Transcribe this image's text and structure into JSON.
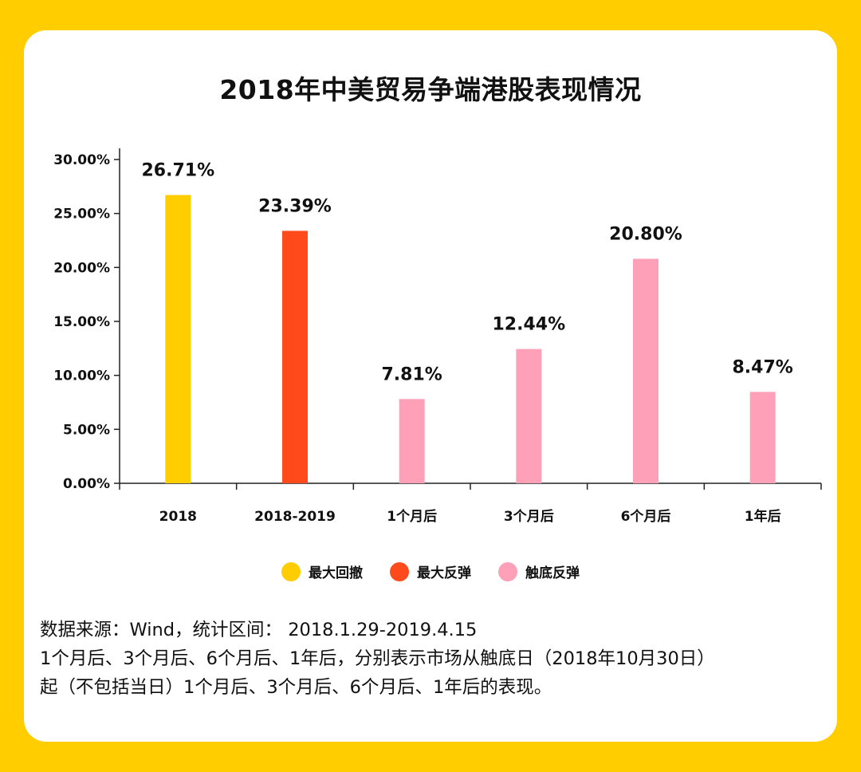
{
  "chart_data": {
    "type": "bar",
    "title": "2018年中美贸易争端港股表现情况",
    "categories": [
      "2018",
      "2018-2019",
      "1个月后",
      "3个月后",
      "6个月后",
      "1年后"
    ],
    "values": [
      26.71,
      23.39,
      7.81,
      12.44,
      20.8,
      8.47
    ],
    "data_labels": [
      "26.71%",
      "23.39%",
      "7.81%",
      "12.44%",
      "20.80%",
      "8.47%"
    ],
    "series_of_category": [
      0,
      1,
      2,
      2,
      2,
      2
    ],
    "ylim": [
      0,
      30
    ],
    "yticks": [
      0,
      5,
      10,
      15,
      20,
      25,
      30
    ],
    "ytick_labels": [
      "0.00%",
      "5.00%",
      "10.00%",
      "15.00%",
      "20.00%",
      "25.00%",
      "30.00%"
    ],
    "xlabel": "",
    "ylabel": "",
    "grid": false,
    "legend_position": "bottom",
    "legend": [
      {
        "name": "最大回撤",
        "color": "#FFCD00"
      },
      {
        "name": "最大反弹",
        "color": "#FF4A1C"
      },
      {
        "name": "触底反弹",
        "color": "#FFA0B9"
      }
    ]
  },
  "notes": [
    "数据来源：Wind，统计区间：  2018.1.29-2019.4.15",
    "1个月后、3个月后、6个月后、1年后，分别表示市场从触底日（2018年10月30日）",
    "起（不包括当日）1个月后、3个月后、6个月后、1年后的表现。"
  ]
}
